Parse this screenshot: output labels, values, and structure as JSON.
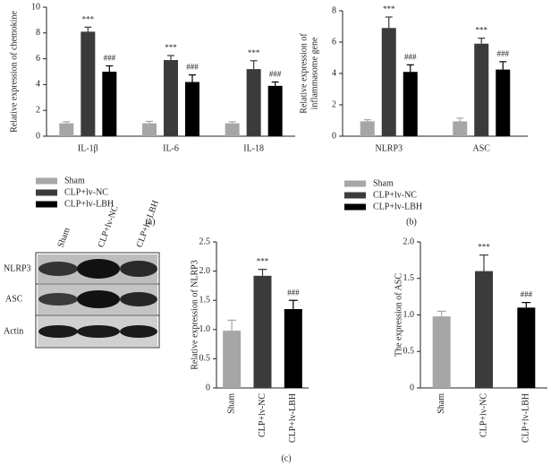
{
  "chart_data": [
    {
      "type": "bar",
      "panel": "(a)",
      "ylabel": [
        "Relative expression of chemokine"
      ],
      "categories": [
        "IL-1β",
        "IL-6",
        "IL-18"
      ],
      "series": [
        {
          "name": "Sham",
          "color": "#a6a6a6",
          "values": [
            1.0,
            1.0,
            1.0
          ],
          "errors": [
            0.12,
            0.15,
            0.12
          ]
        },
        {
          "name": "CLP+lv-NC",
          "color": "#3b3b3b",
          "values": [
            8.1,
            5.9,
            5.2
          ],
          "errors": [
            0.35,
            0.35,
            0.65
          ],
          "annotations": [
            "***",
            "***",
            "***"
          ]
        },
        {
          "name": "CLP+lv-LBH",
          "color": "#000000",
          "values": [
            5.0,
            4.2,
            3.9
          ],
          "errors": [
            0.45,
            0.55,
            0.3
          ],
          "annotations": [
            "###",
            "###",
            "###"
          ]
        }
      ],
      "ylim": [
        0,
        10
      ],
      "yticks": [
        0,
        2,
        4,
        6,
        8,
        10
      ]
    },
    {
      "type": "bar",
      "panel": "(b)",
      "ylabel": [
        "Relative expression of",
        "inflammasome gene"
      ],
      "categories": [
        "NLRP3",
        "ASC"
      ],
      "series": [
        {
          "name": "Sham",
          "color": "#a6a6a6",
          "values": [
            0.95,
            0.95
          ],
          "errors": [
            0.1,
            0.2
          ]
        },
        {
          "name": "CLP+lv-NC",
          "color": "#3b3b3b",
          "values": [
            6.9,
            5.9
          ],
          "errors": [
            0.7,
            0.35
          ],
          "annotations": [
            "***",
            "***"
          ]
        },
        {
          "name": "CLP+lv-LBH",
          "color": "#000000",
          "values": [
            4.1,
            4.25
          ],
          "errors": [
            0.45,
            0.5
          ],
          "annotations": [
            "###",
            "###"
          ]
        }
      ],
      "ylim": [
        0,
        8
      ],
      "yticks": [
        0,
        2,
        4,
        6,
        8
      ]
    },
    {
      "type": "bar",
      "ylabel": [
        "Relative expression of NLRP3"
      ],
      "categories": [
        "Sham",
        "CLP+lv-NC",
        "CLP+lv-LBH"
      ],
      "values": [
        0.98,
        1.92,
        1.35
      ],
      "errors": [
        0.18,
        0.11,
        0.15
      ],
      "colors": [
        "#a6a6a6",
        "#3b3b3b",
        "#000000"
      ],
      "annotations": [
        null,
        "***",
        "###"
      ],
      "ylim": [
        0,
        2.5
      ],
      "yticks": [
        0,
        0.5,
        {
          "value": 1,
          "label": "1.0"
        },
        1.5,
        {
          "value": 2,
          "label": "2.0"
        },
        2.5
      ]
    },
    {
      "type": "bar",
      "ylabel": [
        "The expression of ASC"
      ],
      "categories": [
        "Sham",
        "CLP+lv-NC",
        "CLP+lv-LBH"
      ],
      "values": [
        0.98,
        1.6,
        1.1
      ],
      "errors": [
        0.07,
        0.22,
        0.07
      ],
      "colors": [
        "#a6a6a6",
        "#3b3b3b",
        "#000000"
      ],
      "annotations": [
        null,
        "***",
        "###"
      ],
      "ylim": [
        0,
        2
      ],
      "yticks": [
        0,
        0.5,
        {
          "value": 1,
          "label": "1.0"
        },
        1.5,
        {
          "value": 2,
          "label": "2.0"
        }
      ]
    }
  ],
  "blot": {
    "panel": "(c)",
    "lanes": [
      "Sham",
      "CLP+lv-NC",
      "CLP+lv-LBH"
    ],
    "rows": [
      "NLRP3",
      "ASC",
      "Actin"
    ]
  }
}
